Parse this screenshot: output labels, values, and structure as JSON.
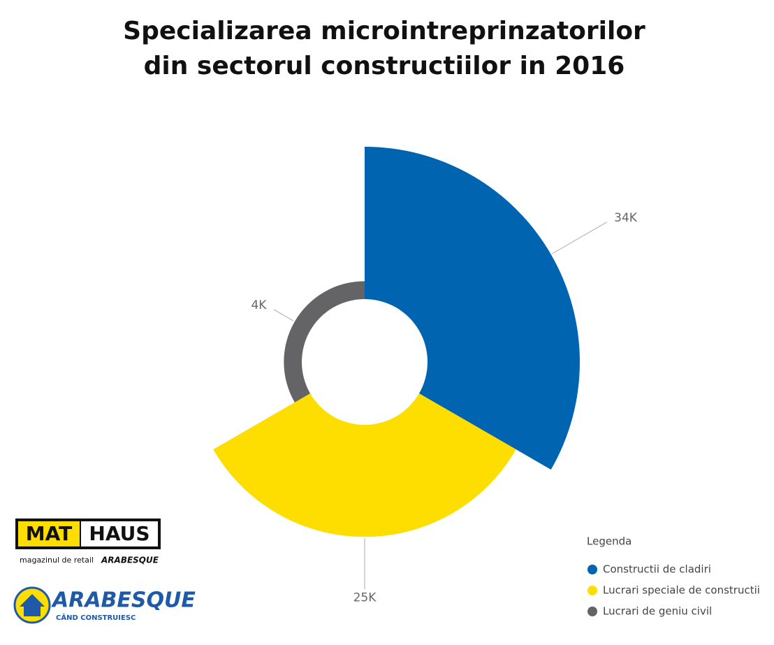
{
  "chart_data": {
    "type": "rose",
    "title": "Specializarea microintreprinzatorilor din sectorul constructiilor in 2016",
    "categories": [
      "Constructii de cladiri",
      "Lucrari speciale de constructii",
      "Lucrari de geniu civil"
    ],
    "values": [
      34000,
      25000,
      4000
    ],
    "value_labels": [
      "34K",
      "25K",
      "4K"
    ],
    "colors": [
      "#0064b0",
      "#fedd00",
      "#646466"
    ],
    "legend_title": "Legenda",
    "legend": "bottom-right"
  },
  "logos": {
    "mathaus_left": "MAT",
    "mathaus_right": "HAUS",
    "mathaus_tagline": "magazinul de retail",
    "mathaus_brand": "ARABESQUE",
    "arabesque": "ARABESQUE",
    "arabesque_tagline": "CÂND CONSTRUIESC"
  }
}
